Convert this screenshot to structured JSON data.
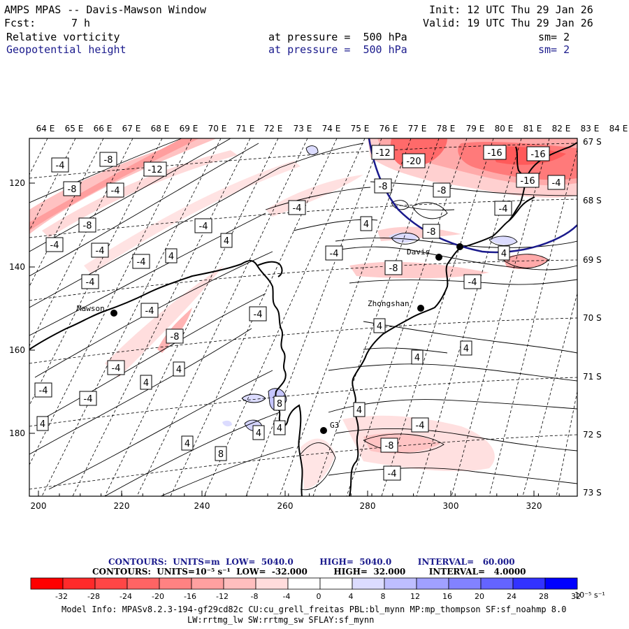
{
  "header": {
    "title": "AMPS MPAS -- Davis-Mawson Window",
    "init": "Init: 12 UTC Thu 29 Jan 26",
    "fcst_label": "Fcst:",
    "fcst_value": "7 h",
    "valid": "Valid: 19 UTC Thu 29 Jan 26",
    "fields": [
      {
        "name": "Relative vorticity",
        "level": "at pressure =  500 hPa",
        "sm": "sm= 2"
      },
      {
        "name": "Geopotential height",
        "level": "at pressure =  500 hPa",
        "sm": "sm= 2"
      }
    ]
  },
  "map": {
    "top_lon_labels": [
      "64 E",
      "65 E",
      "66 E",
      "67 E",
      "68 E",
      "69 E",
      "70 E",
      "71 E",
      "72 E",
      "73 E",
      "74 E",
      "75 E",
      "76 E",
      "77 E",
      "78 E",
      "79 E",
      "80 E",
      "81 E",
      "82 E",
      "83 E",
      "84 E"
    ],
    "right_lat_labels": [
      "67 S",
      "68 S",
      "69 S",
      "70 S",
      "71 S",
      "72 S",
      "73 S"
    ],
    "x_ticks": [
      "200",
      "220",
      "240",
      "260",
      "280",
      "300",
      "320"
    ],
    "y_ticks": [
      "120",
      "140",
      "160",
      "180"
    ],
    "stations": [
      {
        "name": "Mawson"
      },
      {
        "name": "Davis"
      },
      {
        "name": "Zhongshan"
      },
      {
        "name": "G3"
      }
    ],
    "contour_labels": [
      {
        "text": "-4"
      },
      {
        "text": "-8"
      },
      {
        "text": "-12"
      },
      {
        "text": "-8"
      },
      {
        "text": "-4"
      },
      {
        "text": "-8"
      },
      {
        "text": "-4"
      },
      {
        "text": "-4"
      },
      {
        "text": "-4"
      },
      {
        "text": "4"
      },
      {
        "text": "-4"
      },
      {
        "text": "4"
      },
      {
        "text": "-4"
      },
      {
        "text": "-4"
      },
      {
        "text": "-4"
      },
      {
        "text": "-8"
      },
      {
        "text": "-4"
      },
      {
        "text": "4"
      },
      {
        "text": "4"
      },
      {
        "text": "-4"
      },
      {
        "text": "-4"
      },
      {
        "text": "4"
      },
      {
        "text": "4"
      },
      {
        "text": "8"
      },
      {
        "text": "8"
      },
      {
        "text": "4"
      },
      {
        "text": "4"
      },
      {
        "text": "-12"
      },
      {
        "text": "-20"
      },
      {
        "text": "-8"
      },
      {
        "text": "-8"
      },
      {
        "text": "-4"
      },
      {
        "text": "4"
      },
      {
        "text": "-8"
      },
      {
        "text": "-8"
      },
      {
        "text": "-4"
      },
      {
        "text": "4"
      },
      {
        "text": "-16"
      },
      {
        "text": "-16"
      },
      {
        "text": "-16"
      },
      {
        "text": "-4"
      },
      {
        "text": "-4"
      },
      {
        "text": "4"
      },
      {
        "text": "4"
      },
      {
        "text": "4"
      },
      {
        "text": "4"
      },
      {
        "text": "-4"
      },
      {
        "text": "-8"
      },
      {
        "text": "-4"
      },
      {
        "text": "-4"
      }
    ]
  },
  "contour_info": {
    "line1": "CONTOURS:  UNITS=m  LOW=  5040.0         HIGH=  5040.0         INTERVAL=   60.000",
    "line2": "CONTOURS:  UNITS=10⁻⁵ s⁻¹  LOW=  -32.000         HIGH=  32.000        INTERVAL=   4.0000"
  },
  "colorbar": {
    "colors": [
      "#ff0000",
      "#ff2a2a",
      "#ff4646",
      "#ff6464",
      "#ff8282",
      "#ffa0a0",
      "#ffbebe",
      "#ffdcdc",
      "#ffffff",
      "#ffffff",
      "#dcdcff",
      "#bebeff",
      "#a0a0ff",
      "#8282ff",
      "#6464ff",
      "#3232ff",
      "#0000ff"
    ],
    "ticks": [
      "-32",
      "-28",
      "-24",
      "-20",
      "-16",
      "-12",
      "-8",
      "-4",
      "0",
      "4",
      "8",
      "12",
      "16",
      "20",
      "24",
      "28",
      "32"
    ],
    "unit": "10⁻⁵ s⁻¹"
  },
  "model_info": {
    "line1": "Model Info: MPASv8.2.3-194-gf29cd82c CU:cu_grell_freitas PBL:bl_mynn MP:mp_thompson SF:sf_noahmp 8.0",
    "line2": "LW:rrtmg_lw SW:rrtmg_sw SFLAY:sf_mynn"
  }
}
